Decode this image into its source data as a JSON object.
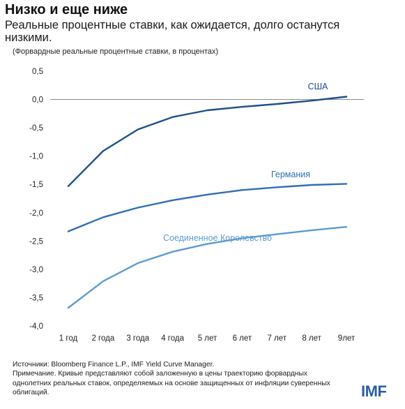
{
  "title": "Низко и еще ниже",
  "subtitle": "Реальные процентные ставки, как ожидается, долго останутся низкими.",
  "units_note": "(Форвардные реальные процентные ставки, в процентах)",
  "source": "Источники: Bloomberg Finance L.P., IMF Yield Curve Manager.",
  "note": "Примечание. Кривые представляют собой заложенную в цены траекторию форвардных однолетних реальных ставок, определяемых на основе защищенных от инфляции суверенных облигаций.",
  "logo": "IMF",
  "chart_data": {
    "type": "line",
    "title": "Низко и еще ниже",
    "xlabel": "",
    "ylabel": "",
    "ylim": [
      -4.0,
      0.5
    ],
    "yticks": [
      "0,5",
      "0,0",
      "-0,5",
      "-1,0",
      "-1,5",
      "-2,0",
      "-2,5",
      "-3,0",
      "-3,5",
      "-4,0"
    ],
    "ytick_values": [
      0.5,
      0.0,
      -0.5,
      -1.0,
      -1.5,
      -2.0,
      -2.5,
      -3.0,
      -3.5,
      -4.0
    ],
    "categories": [
      "1 год",
      "2 года",
      "3 года",
      "4 года",
      "5 лет",
      "6 лет",
      "7 лет",
      "8 лет",
      "9лет"
    ],
    "grid": false,
    "zero_line": true,
    "series": [
      {
        "name": "США",
        "color": "#1c4f8c",
        "values": [
          -1.53,
          -0.91,
          -0.53,
          -0.31,
          -0.19,
          -0.13,
          -0.08,
          -0.02,
          0.05
        ]
      },
      {
        "name": "Германия",
        "color": "#2e6fb3",
        "values": [
          -2.33,
          -2.08,
          -1.91,
          -1.78,
          -1.68,
          -1.6,
          -1.55,
          -1.51,
          -1.49
        ]
      },
      {
        "name": "Соединенное Королевство",
        "color": "#5b9bd1",
        "values": [
          -3.68,
          -3.21,
          -2.89,
          -2.69,
          -2.55,
          -2.45,
          -2.38,
          -2.31,
          -2.25
        ]
      }
    ]
  }
}
